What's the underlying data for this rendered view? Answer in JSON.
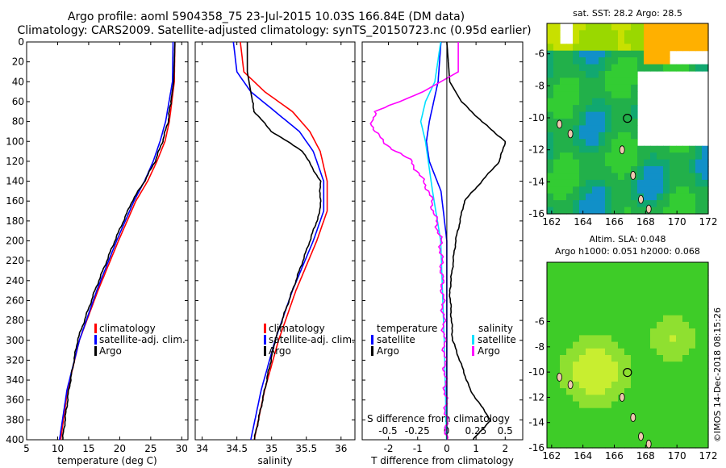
{
  "header": {
    "line1": "Argo profile: aoml 5904358_75 23-Jul-2015 10.03S 166.84E (DM data)",
    "line2": "Climatology: CARS2009. Satellite-adjusted climatology: synTS_20150723.nc (0.95d earlier)"
  },
  "colors": {
    "climatology": "#ff0000",
    "satellite": "#0000ff",
    "argo": "#000000",
    "sat_T": "#00e0ff",
    "sat_S": "#ff00ff"
  },
  "legend": {
    "climatology": "climatology",
    "satellite_adj": "satellite-adj. clim.",
    "argo": "Argo",
    "temperature": "temperature",
    "salinity": "salinity",
    "satellite": "satellite"
  },
  "stamp": "©IMOS 14-Dec-2018 08:15:26",
  "chart_data": [
    {
      "type": "line",
      "title": "",
      "xlabel": "temperature (deg C)",
      "ylabel": "",
      "xlim": [
        5,
        31
      ],
      "ylim": [
        400,
        0
      ],
      "xticks": [
        5,
        10,
        15,
        20,
        25,
        30
      ],
      "xtick_labels": [
        "5",
        "10",
        "15",
        "20",
        "25",
        "30"
      ],
      "yticks": [
        0,
        20,
        40,
        60,
        80,
        100,
        120,
        140,
        160,
        180,
        200,
        220,
        240,
        260,
        280,
        300,
        320,
        340,
        360,
        380,
        400
      ],
      "ytick_labels": [
        "0",
        "20",
        "40",
        "60",
        "80",
        "100",
        "120",
        "140",
        "160",
        "180",
        "200",
        "220",
        "240",
        "260",
        "280",
        "300",
        "320",
        "340",
        "360",
        "380",
        "400"
      ],
      "series": [
        {
          "name": "climatology",
          "depth": [
            0,
            40,
            80,
            100,
            120,
            140,
            160,
            200,
            250,
            300,
            350,
            400
          ],
          "values": [
            28.9,
            28.8,
            28.0,
            27.3,
            26.0,
            24.5,
            22.6,
            19.8,
            16.5,
            13.5,
            11.6,
            10.5
          ]
        },
        {
          "name": "satellite-adj. clim.",
          "depth": [
            0,
            40,
            80,
            100,
            120,
            140,
            160,
            200,
            250,
            300,
            350,
            400
          ],
          "values": [
            28.6,
            28.5,
            27.4,
            26.5,
            25.4,
            24.0,
            22.3,
            19.5,
            16.3,
            13.5,
            11.5,
            10.3
          ]
        },
        {
          "name": "Argo",
          "depth": [
            0,
            40,
            80,
            100,
            120,
            140,
            160,
            200,
            250,
            300,
            350,
            400
          ],
          "values": [
            28.9,
            28.7,
            27.8,
            26.9,
            25.7,
            24.0,
            22.0,
            19.2,
            16.0,
            13.2,
            11.8,
            10.8
          ]
        }
      ]
    },
    {
      "type": "line",
      "title": "",
      "xlabel": "salinity",
      "ylabel": "",
      "xlim": [
        33.9,
        36.2
      ],
      "ylim": [
        400,
        0
      ],
      "xticks": [
        34,
        34.5,
        35,
        35.5,
        36
      ],
      "xtick_labels": [
        "34",
        "34.5",
        "35",
        "35.5",
        "36"
      ],
      "series": [
        {
          "name": "climatology",
          "depth": [
            0,
            30,
            50,
            70,
            90,
            110,
            140,
            170,
            200,
            250,
            300,
            350,
            400
          ],
          "values": [
            34.55,
            34.6,
            34.9,
            35.3,
            35.55,
            35.7,
            35.8,
            35.8,
            35.65,
            35.35,
            35.1,
            34.9,
            34.75
          ]
        },
        {
          "name": "satellite-adj. clim.",
          "depth": [
            0,
            30,
            50,
            70,
            90,
            110,
            140,
            170,
            200,
            250,
            300,
            350,
            400
          ],
          "values": [
            34.45,
            34.5,
            34.7,
            35.05,
            35.4,
            35.6,
            35.75,
            35.75,
            35.6,
            35.3,
            35.05,
            34.85,
            34.7
          ]
        },
        {
          "name": "Argo",
          "depth": [
            0,
            30,
            50,
            70,
            90,
            110,
            140,
            170,
            200,
            250,
            300,
            350,
            400
          ],
          "values": [
            34.65,
            34.65,
            34.7,
            34.75,
            35.0,
            35.45,
            35.7,
            35.7,
            35.55,
            35.3,
            35.05,
            34.9,
            34.75
          ]
        }
      ]
    },
    {
      "type": "line",
      "title": "",
      "xlabel": "T difference from climatology",
      "secondary_xlabel": "S difference from climatology",
      "xlim": [
        -2.9,
        2.6
      ],
      "ylim": [
        400,
        0
      ],
      "xticks": [
        -2,
        -1,
        0,
        1,
        2
      ],
      "xtick_labels": [
        "-2",
        "-1",
        "0",
        "1",
        "2"
      ],
      "secondary_xticks": [
        -0.5,
        -0.25,
        0,
        0.25,
        0.5
      ],
      "secondary_xtick_labels": [
        "-0.5",
        "-0.25",
        "0",
        "0.25",
        "0.5"
      ],
      "series": [
        {
          "name": "temperature satellite",
          "depth": [
            0,
            40,
            80,
            100,
            120,
            150,
            200,
            250,
            300,
            350,
            400
          ],
          "values": [
            -0.2,
            -0.3,
            -0.6,
            -0.7,
            -0.6,
            -0.2,
            0.0,
            0.0,
            0.0,
            0.0,
            0.0
          ]
        },
        {
          "name": "temperature Argo",
          "depth": [
            0,
            40,
            60,
            80,
            100,
            120,
            140,
            160,
            200,
            250,
            300,
            350,
            380,
            400
          ],
          "values": [
            0.0,
            0.1,
            0.5,
            1.2,
            2.0,
            1.8,
            1.2,
            0.6,
            0.3,
            0.1,
            0.2,
            0.8,
            1.5,
            0.9
          ]
        },
        {
          "name": "salinity satellite",
          "depth": [
            0,
            40,
            60,
            80,
            100,
            150,
            200,
            300,
            400
          ],
          "values": [
            -0.05,
            -0.1,
            -0.18,
            -0.22,
            -0.18,
            -0.12,
            -0.05,
            -0.02,
            0.0
          ]
        },
        {
          "name": "salinity Argo",
          "depth": [
            0,
            30,
            50,
            70,
            80,
            100,
            120,
            150,
            200,
            300,
            400
          ],
          "values": [
            0.1,
            0.1,
            -0.2,
            -0.6,
            -0.65,
            -0.55,
            -0.3,
            -0.15,
            -0.05,
            -0.02,
            0.0
          ]
        }
      ]
    },
    {
      "type": "heatmap",
      "title": "sat. SST: 28.2 Argo: 28.5",
      "xlim": [
        161.7,
        172
      ],
      "ylim": [
        -16,
        -4.1
      ],
      "xticks": [
        162,
        164,
        166,
        168,
        170,
        172
      ],
      "xtick_labels": [
        "162",
        "164",
        "166",
        "168",
        "170",
        "172"
      ],
      "yticks": [
        -6,
        -8,
        -10,
        -12,
        -14,
        -16
      ],
      "ytick_labels": [
        "-6",
        "-8",
        "-10",
        "-12",
        "-14",
        "-16"
      ],
      "marker": {
        "lon": 166.84,
        "lat": -10.03
      }
    },
    {
      "type": "heatmap",
      "title": "Altim. SLA: 0.048",
      "subtitle": "Argo h1000: 0.051 h2000: 0.068",
      "xlim": [
        161.7,
        172
      ],
      "ylim": [
        -16,
        -1.3
      ],
      "xticks": [
        162,
        164,
        166,
        168,
        170,
        172
      ],
      "xtick_labels": [
        "162",
        "164",
        "166",
        "168",
        "170",
        "172"
      ],
      "yticks": [
        -6,
        -8,
        -10,
        -12,
        -14,
        -16
      ],
      "ytick_labels": [
        "-6",
        "-8",
        "-10",
        "-12",
        "-14",
        "-16"
      ],
      "marker": {
        "lon": 166.84,
        "lat": -10.03
      }
    }
  ]
}
